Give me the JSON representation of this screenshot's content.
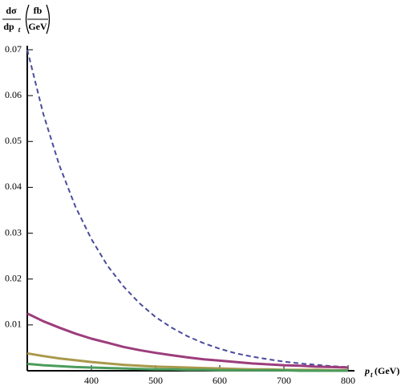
{
  "chart_data": {
    "type": "line",
    "ylabel": {
      "numerator": "dσ",
      "denominator": "dp",
      "subscript": "t",
      "unit_numerator": "fb",
      "unit_denominator": "GeV"
    },
    "xlabel": {
      "symbol": "p",
      "subscript": "t",
      "unit": "(GeV)"
    },
    "x": [
      300,
      325,
      350,
      375,
      400,
      425,
      450,
      475,
      500,
      525,
      550,
      575,
      600,
      625,
      650,
      675,
      700,
      725,
      750,
      775,
      800
    ],
    "series": [
      {
        "color": "#4b4b9c",
        "dashed": true,
        "values": [
          0.07,
          0.056,
          0.0448,
          0.0358,
          0.0287,
          0.0229,
          0.0184,
          0.0147,
          0.0117,
          0.0094,
          0.0075,
          0.006,
          0.0048,
          0.0038,
          0.0031,
          0.0025,
          0.002,
          0.0016,
          0.0013,
          0.001,
          0.0008
        ]
      },
      {
        "color": "#9c3d7c",
        "dashed": false,
        "values": [
          0.0125,
          0.0108,
          0.0094,
          0.0081,
          0.007,
          0.0061,
          0.0052,
          0.0045,
          0.0039,
          0.0034,
          0.0029,
          0.0025,
          0.0022,
          0.0019,
          0.0016,
          0.0014,
          0.0012,
          0.0011,
          0.0009,
          0.0008,
          0.0007
        ]
      },
      {
        "color": "#a9994a",
        "dashed": false,
        "values": [
          0.0038,
          0.0032,
          0.0027,
          0.0023,
          0.0019,
          0.0016,
          0.0013,
          0.0011,
          0.0009,
          0.0008,
          0.0007,
          0.0006,
          0.0005,
          0.0004,
          0.0003,
          0.0003,
          0.0002,
          0.0002,
          0.0002,
          0.0001,
          0.0001
        ]
      },
      {
        "color": "#4b9c5c",
        "dashed": false,
        "values": [
          0.0015,
          0.0012,
          0.001,
          0.0008,
          0.0007,
          0.0006,
          0.0005,
          0.0004,
          0.0003,
          0.0003,
          0.0002,
          0.0002,
          0.0001,
          0.0001,
          0.0001,
          0.0001,
          0.0001,
          0,
          0,
          0,
          0
        ]
      }
    ],
    "xlim": [
      300,
      800
    ],
    "ylim": [
      0,
      0.07
    ],
    "xticks": [
      400,
      500,
      600,
      700,
      800
    ],
    "yticks": [
      0.01,
      0.02,
      0.03,
      0.04,
      0.05,
      0.06,
      0.07
    ],
    "grid": false
  }
}
